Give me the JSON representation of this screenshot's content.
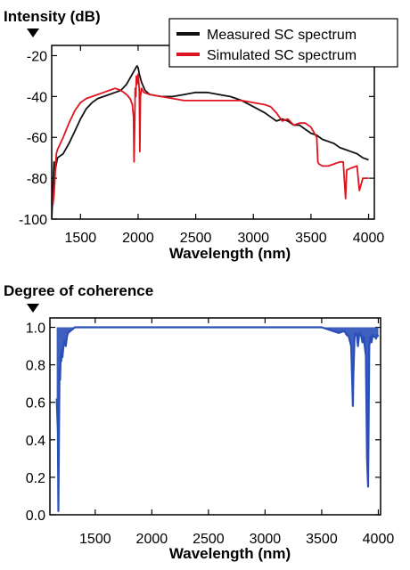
{
  "chart_data": [
    {
      "type": "line",
      "title": "Intensity (dB)",
      "xlabel": "Wavelength (nm)",
      "ylabel": "",
      "xlim": [
        1250,
        4050
      ],
      "ylim": [
        -100,
        -15
      ],
      "xticks": [
        1500,
        2000,
        2500,
        3000,
        3500,
        4000
      ],
      "yticks": [
        -100,
        -80,
        -60,
        -40,
        -20
      ],
      "legend": "top-right",
      "grid": false,
      "series": [
        {
          "name": "Measured SC spectrum",
          "color": "#111111",
          "x": [
            1250,
            1270,
            1280,
            1300,
            1350,
            1400,
            1450,
            1500,
            1550,
            1600,
            1650,
            1700,
            1750,
            1800,
            1850,
            1900,
            1930,
            1950,
            1970,
            1990,
            2000,
            2010,
            2030,
            2060,
            2100,
            2200,
            2300,
            2400,
            2500,
            2600,
            2700,
            2800,
            2900,
            3000,
            3100,
            3150,
            3200,
            3250,
            3300,
            3350,
            3400,
            3450,
            3500,
            3550,
            3600,
            3650,
            3700,
            3750,
            3800,
            3850,
            3900,
            3950,
            4000
          ],
          "y": [
            -100,
            -72,
            -76,
            -70,
            -68,
            -63,
            -57,
            -51,
            -46,
            -43,
            -41,
            -40,
            -39,
            -38,
            -37,
            -34,
            -31,
            -29,
            -27,
            -25,
            -26,
            -29,
            -33,
            -37,
            -39,
            -40,
            -40,
            -39,
            -38,
            -38,
            -39,
            -40,
            -42,
            -45,
            -48,
            -50,
            -52,
            -51,
            -52,
            -54,
            -54,
            -56,
            -58,
            -59,
            -61,
            -62,
            -63,
            -65,
            -66,
            -67,
            -68,
            -70,
            -71
          ]
        },
        {
          "name": "Simulated SC spectrum",
          "color": "#e0141e",
          "x": [
            1250,
            1260,
            1270,
            1290,
            1300,
            1350,
            1400,
            1450,
            1500,
            1550,
            1600,
            1650,
            1700,
            1750,
            1800,
            1850,
            1900,
            1930,
            1950,
            1960,
            1965,
            1970,
            1975,
            1980,
            1985,
            1990,
            2000,
            2010,
            2015,
            2020,
            2030,
            2050,
            2100,
            2200,
            2300,
            2400,
            2500,
            2600,
            2700,
            2800,
            2900,
            3000,
            3100,
            3150,
            3200,
            3250,
            3300,
            3350,
            3400,
            3450,
            3500,
            3550,
            3560,
            3570,
            3600,
            3650,
            3700,
            3750,
            3780,
            3800,
            3810,
            3850,
            3900,
            3920,
            3950,
            4000
          ],
          "y": [
            -82,
            -93,
            -88,
            -68,
            -66,
            -60,
            -53,
            -47,
            -43,
            -41,
            -40,
            -39,
            -38,
            -37,
            -36,
            -37,
            -39,
            -41,
            -44,
            -50,
            -72,
            -55,
            -36,
            -40,
            -30,
            -34,
            -29,
            -37,
            -67,
            -40,
            -36,
            -38,
            -39,
            -40,
            -41,
            -42,
            -42,
            -42,
            -42,
            -42,
            -42,
            -43,
            -44,
            -45,
            -48,
            -52,
            -51,
            -54,
            -53,
            -53,
            -55,
            -60,
            -72,
            -73,
            -74,
            -74,
            -73,
            -72,
            -72,
            -90,
            -76,
            -75,
            -74,
            -86,
            -80,
            -80
          ]
        }
      ]
    },
    {
      "type": "line",
      "title": "Degree of coherence",
      "xlabel": "Wavelength (nm)",
      "ylabel": "",
      "xlim": [
        1100,
        4020
      ],
      "ylim": [
        0.0,
        1.05
      ],
      "xticks": [
        1500,
        2000,
        2500,
        3000,
        3500,
        4000
      ],
      "yticks": [
        0.0,
        0.2,
        0.4,
        0.6,
        0.8,
        1.0
      ],
      "legend": "none",
      "grid": false,
      "series": [
        {
          "color": "#2a4fb8",
          "x": [
            1160,
            1170,
            1175,
            1180,
            1185,
            1190,
            1195,
            1200,
            1205,
            1210,
            1220,
            1230,
            1240,
            1250,
            1260,
            1280,
            1300,
            1320,
            1350,
            1400,
            1500,
            2000,
            2500,
            3000,
            3400,
            3500,
            3550,
            3600,
            3650,
            3700,
            3720,
            3740,
            3760,
            3770,
            3775,
            3780,
            3790,
            3800,
            3810,
            3820,
            3830,
            3840,
            3850,
            3860,
            3870,
            3880,
            3890,
            3900,
            3910,
            3920,
            3930,
            3940,
            3950,
            3960,
            3970,
            3980,
            3990,
            4000
          ],
          "y": [
            0.62,
            0.45,
            0.02,
            0.45,
            0.78,
            0.72,
            0.85,
            0.82,
            0.88,
            0.84,
            0.9,
            0.93,
            0.9,
            0.95,
            0.97,
            0.98,
            0.99,
            1.0,
            1.0,
            1.0,
            1.0,
            1.0,
            1.0,
            1.0,
            1.0,
            1.0,
            0.99,
            0.98,
            0.97,
            0.98,
            0.96,
            0.95,
            0.9,
            0.7,
            0.58,
            0.75,
            0.95,
            0.97,
            0.96,
            0.9,
            0.96,
            0.97,
            0.95,
            0.92,
            0.95,
            0.9,
            0.85,
            0.3,
            0.15,
            0.9,
            0.95,
            0.92,
            0.96,
            0.95,
            0.95,
            0.94,
            0.96,
            0.95
          ]
        }
      ]
    }
  ]
}
